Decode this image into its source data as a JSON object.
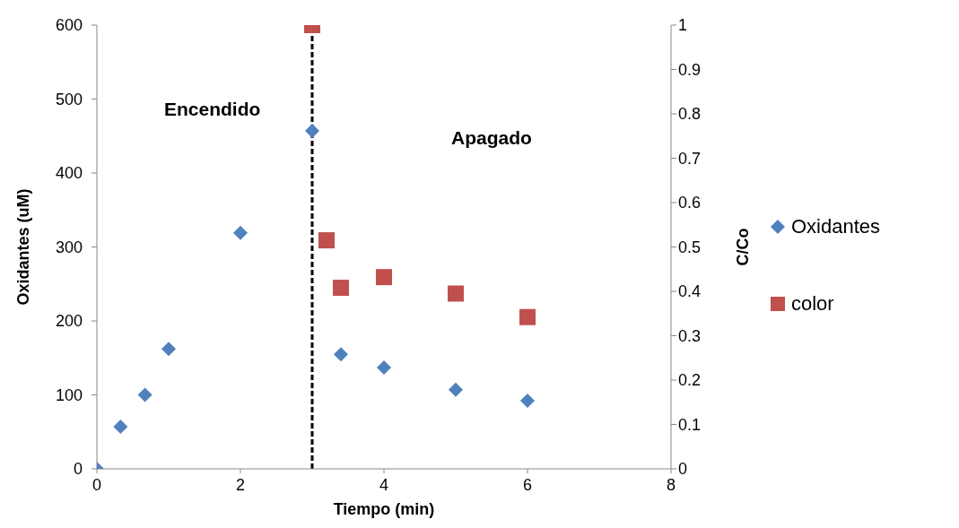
{
  "chart_data": {
    "type": "scatter",
    "xlabel": "Tiempo (min)",
    "ylabel": "Oxidantes (uM)",
    "y2label": "C/Co",
    "xlim": [
      0,
      8
    ],
    "xticks": [
      0,
      2,
      4,
      6,
      8
    ],
    "ylim": [
      0,
      600
    ],
    "yticks": [
      0,
      100,
      200,
      300,
      400,
      500,
      600
    ],
    "y2lim": [
      0,
      1
    ],
    "y2ticks": [
      0,
      0.1,
      0.2,
      0.3,
      0.4,
      0.5,
      0.6,
      0.7,
      0.8,
      0.9,
      1
    ],
    "grid": false,
    "legend": "right",
    "series": [
      {
        "name": "Oxidantes",
        "color": "#4f81bd",
        "marker": "diamond",
        "x": [
          0,
          0.33,
          0.67,
          1,
          2,
          3,
          3.4,
          4,
          5,
          6
        ],
        "values": [
          0,
          57,
          100,
          162,
          319,
          457,
          155,
          137,
          107,
          92
        ]
      },
      {
        "name": "color",
        "color": "#c0504d",
        "marker": "square",
        "axis": "y2",
        "x": [
          3,
          3.2,
          3.4,
          4,
          5,
          6
        ],
        "values": [
          1,
          0.515,
          0.408,
          0.432,
          0.395,
          0.342
        ]
      }
    ],
    "ref_lines": [
      {
        "axis": "x",
        "value": 3,
        "color": "#000000",
        "line_style": "dashed"
      }
    ],
    "annotations": [
      "Encendido",
      "Apagado"
    ]
  }
}
